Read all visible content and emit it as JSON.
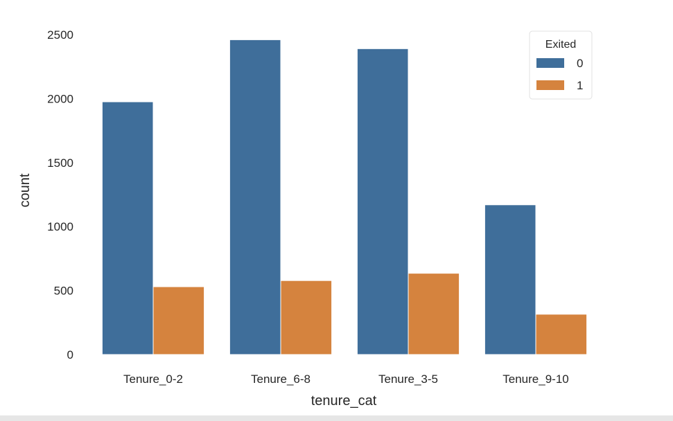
{
  "chart_data": {
    "type": "bar",
    "xlabel": "tenure_cat",
    "ylabel": "count",
    "categories": [
      "Tenure_0-2",
      "Tenure_6-8",
      "Tenure_3-5",
      "Tenure_9-10"
    ],
    "series": [
      {
        "name": "0",
        "color": "#3f6e9a",
        "values": [
          1975,
          2460,
          2390,
          1170
        ]
      },
      {
        "name": "1",
        "color": "#d5833e",
        "values": [
          530,
          578,
          635,
          315
        ]
      }
    ],
    "ylim": [
      0,
      2500
    ],
    "yticks": [
      0,
      500,
      1000,
      1500,
      2000,
      2500
    ],
    "legend": {
      "title": "Exited",
      "placement": "top-right"
    },
    "grid": false
  }
}
